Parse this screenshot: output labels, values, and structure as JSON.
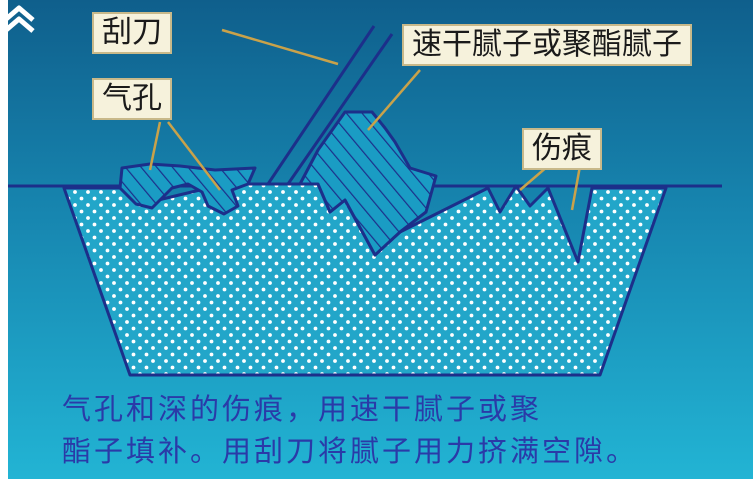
{
  "labels": {
    "scraper": "刮刀",
    "filler": "速干腻子或聚酯腻子",
    "pinhole": "气孔",
    "scratch": "伤痕"
  },
  "caption": {
    "line1": "气孔和深的伤痕，用速干腻子或聚",
    "line2": "酯子填补。用刮刀将腻子用力挤满空隙。"
  },
  "colors": {
    "background_top": "#0f5f8c",
    "background_bottom": "#1fb0d2",
    "outline": "#1c2f8a",
    "label_bg": "#f6f2dc",
    "label_border": "#c8b98a",
    "leader_line": "#c9a24a",
    "caption_text": "#2a3aa8"
  },
  "icons": {
    "nav": "double-chevron-up-icon"
  }
}
